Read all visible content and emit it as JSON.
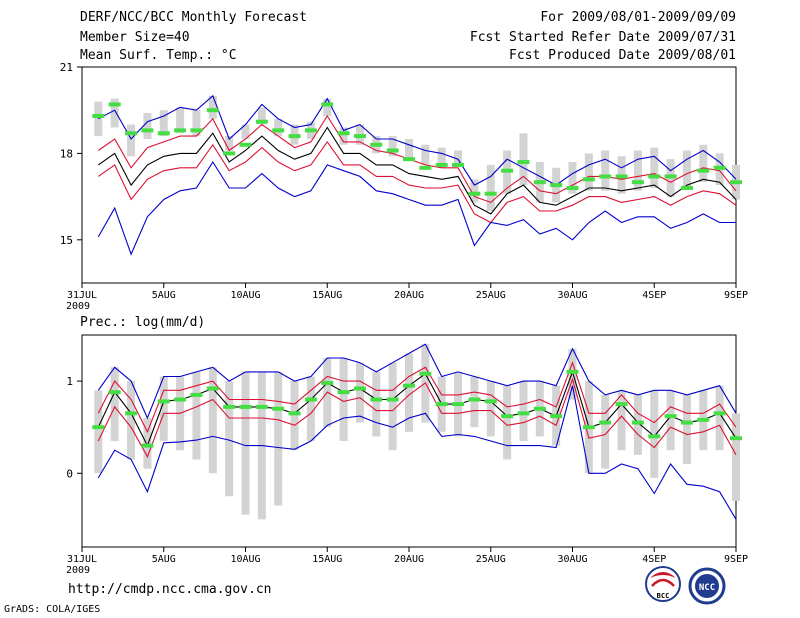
{
  "header": {
    "title": "DERF/NCC/BCC Monthly Forecast",
    "member_size": "Member Size=40",
    "variable": "Mean Surf. Temp.: °C",
    "period": "For 2009/08/01-2009/09/09",
    "fcst_start": "Fcst Started Refer Date 2009/07/31",
    "fcst_produced": "Fcst Produced Date 2009/08/01"
  },
  "footer": {
    "url": "http://cmdp.ncc.cma.gov.cn",
    "grads": "GrADS: COLA/IGES",
    "logo1_text": "BCC",
    "logo2_text": "NCC"
  },
  "colors": {
    "bar": "#d3d3d3",
    "observed": "#44dd44",
    "envelope": "#0000cc",
    "spread": "#dd1133",
    "mean": "#000000"
  },
  "chart_data": [
    {
      "type": "line",
      "title": "Mean Surf. Temp.: °C",
      "ylim": [
        13.5,
        21
      ],
      "yticks": [
        15,
        18,
        21
      ],
      "xlim": [
        0,
        40
      ],
      "xticks": [
        0,
        5,
        10,
        15,
        20,
        25,
        30,
        35,
        40
      ],
      "xticklabels": [
        "31JUL",
        "5AUG",
        "10AUG",
        "15AUG",
        "20AUG",
        "25AUG",
        "30AUG",
        "4SEP",
        "9SEP"
      ],
      "year_label": "2009",
      "x": [
        1,
        2,
        3,
        4,
        5,
        6,
        7,
        8,
        9,
        10,
        11,
        12,
        13,
        14,
        15,
        16,
        17,
        18,
        19,
        20,
        21,
        22,
        23,
        24,
        25,
        26,
        27,
        28,
        29,
        30,
        31,
        32,
        33,
        34,
        35,
        36,
        37,
        38,
        39,
        40
      ],
      "series": [
        {
          "name": "ensemble max",
          "values": [
            19.2,
            19.5,
            18.5,
            19.1,
            19.3,
            19.6,
            19.5,
            20.0,
            18.5,
            19.0,
            19.7,
            19.2,
            18.9,
            19.0,
            19.9,
            18.8,
            19.0,
            18.5,
            18.5,
            18.3,
            18.1,
            18.0,
            17.8,
            16.9,
            17.2,
            17.8,
            17.5,
            17.2,
            16.9,
            17.3,
            17.6,
            17.8,
            17.5,
            17.8,
            17.9,
            17.4,
            17.8,
            18.1,
            17.7,
            17.1
          ]
        },
        {
          "name": "upper spread",
          "values": [
            18.1,
            18.5,
            17.5,
            18.2,
            18.4,
            18.6,
            18.6,
            19.2,
            18.1,
            18.5,
            19.0,
            18.6,
            18.2,
            18.4,
            19.3,
            18.4,
            18.4,
            18.1,
            18.0,
            17.8,
            17.6,
            17.5,
            17.5,
            16.5,
            16.3,
            16.8,
            17.2,
            16.7,
            16.6,
            16.9,
            17.2,
            17.2,
            17.1,
            17.2,
            17.3,
            17.0,
            17.3,
            17.5,
            17.4,
            16.7
          ]
        },
        {
          "name": "ensemble mean",
          "values": [
            17.6,
            18.0,
            16.9,
            17.6,
            17.9,
            18.0,
            18.0,
            18.7,
            17.7,
            18.1,
            18.6,
            18.1,
            17.8,
            18.0,
            18.9,
            18.0,
            18.0,
            17.6,
            17.6,
            17.3,
            17.2,
            17.1,
            17.2,
            16.2,
            15.9,
            16.6,
            16.9,
            16.3,
            16.2,
            16.5,
            16.8,
            16.8,
            16.7,
            16.8,
            16.9,
            16.5,
            16.9,
            17.1,
            17.0,
            16.4
          ]
        },
        {
          "name": "lower spread",
          "values": [
            17.2,
            17.6,
            16.4,
            17.1,
            17.4,
            17.5,
            17.5,
            18.3,
            17.4,
            17.7,
            18.2,
            17.7,
            17.4,
            17.6,
            18.4,
            17.6,
            17.6,
            17.2,
            17.2,
            16.9,
            16.8,
            16.8,
            16.9,
            15.9,
            15.6,
            16.3,
            16.5,
            16.0,
            16.0,
            16.2,
            16.5,
            16.5,
            16.3,
            16.4,
            16.5,
            16.2,
            16.5,
            16.7,
            16.6,
            16.2
          ]
        },
        {
          "name": "ensemble min",
          "values": [
            15.1,
            16.1,
            14.5,
            15.8,
            16.4,
            16.7,
            16.8,
            17.7,
            16.8,
            16.8,
            17.3,
            16.8,
            16.5,
            16.7,
            17.6,
            17.4,
            17.2,
            16.7,
            16.6,
            16.4,
            16.2,
            16.2,
            16.4,
            14.8,
            15.6,
            15.5,
            15.7,
            15.2,
            15.4,
            15.0,
            15.6,
            16.0,
            15.6,
            15.8,
            15.8,
            15.4,
            15.6,
            15.9,
            15.6,
            15.6
          ]
        }
      ],
      "boxes": {
        "low": [
          18.6,
          18.9,
          17.9,
          18.5,
          18.6,
          18.7,
          18.6,
          19.2,
          18.1,
          18.5,
          19.0,
          18.6,
          18.3,
          18.5,
          19.3,
          18.3,
          18.3,
          18.0,
          17.9,
          17.8,
          17.6,
          17.5,
          17.6,
          16.3,
          16.0,
          16.6,
          16.9,
          16.3,
          16.3,
          16.6,
          16.7,
          16.7,
          16.6,
          16.7,
          16.8,
          16.5,
          16.8,
          17.0,
          16.9,
          16.4
        ],
        "high": [
          19.8,
          19.9,
          19.0,
          19.4,
          19.5,
          19.6,
          19.5,
          20.0,
          18.6,
          19.0,
          19.6,
          19.2,
          19.0,
          19.1,
          19.9,
          18.9,
          19.0,
          18.6,
          18.6,
          18.5,
          18.3,
          18.2,
          18.1,
          17.1,
          17.6,
          18.1,
          18.7,
          17.7,
          17.5,
          17.7,
          18.0,
          18.1,
          17.9,
          18.1,
          18.2,
          17.8,
          18.1,
          18.3,
          18.0,
          17.6
        ]
      },
      "observed": [
        19.3,
        19.7,
        18.7,
        18.8,
        18.7,
        18.8,
        18.8,
        19.5,
        18.0,
        18.3,
        19.1,
        18.8,
        18.6,
        18.8,
        19.7,
        18.7,
        18.6,
        18.3,
        18.1,
        17.8,
        17.5,
        17.6,
        17.6,
        16.6,
        16.6,
        17.4,
        17.7,
        17.0,
        16.9,
        16.8,
        17.1,
        17.2,
        17.2,
        17.0,
        17.2,
        17.2,
        16.8,
        17.4,
        17.5,
        17.0
      ]
    },
    {
      "type": "line",
      "title": "Prec.: log(mm/d)",
      "ylim": [
        -0.8,
        1.5
      ],
      "yticks": [
        0,
        1
      ],
      "xlim": [
        0,
        40
      ],
      "xticks": [
        0,
        5,
        10,
        15,
        20,
        25,
        30,
        35,
        40
      ],
      "xticklabels": [
        "31JUL",
        "5AUG",
        "10AUG",
        "15AUG",
        "20AUG",
        "25AUG",
        "30AUG",
        "4SEP",
        "9SEP"
      ],
      "year_label": "2009",
      "x": [
        1,
        2,
        3,
        4,
        5,
        6,
        7,
        8,
        9,
        10,
        11,
        12,
        13,
        14,
        15,
        16,
        17,
        18,
        19,
        20,
        21,
        22,
        23,
        24,
        25,
        26,
        27,
        28,
        29,
        30,
        31,
        32,
        33,
        34,
        35,
        36,
        37,
        38,
        39,
        40
      ],
      "series": [
        {
          "name": "ensemble max",
          "values": [
            0.9,
            1.15,
            1.0,
            0.6,
            1.05,
            1.05,
            1.1,
            1.15,
            1.0,
            1.1,
            1.1,
            1.1,
            1.0,
            1.05,
            1.25,
            1.25,
            1.2,
            1.1,
            1.2,
            1.3,
            1.4,
            1.05,
            1.1,
            1.05,
            1.0,
            0.95,
            1.0,
            1.0,
            0.95,
            1.35,
            1.0,
            0.85,
            0.9,
            0.85,
            0.9,
            0.9,
            0.85,
            0.9,
            0.95,
            0.65
          ]
        },
        {
          "name": "upper spread",
          "values": [
            0.65,
            1.0,
            0.8,
            0.45,
            0.9,
            0.9,
            0.95,
            1.0,
            0.8,
            0.8,
            0.8,
            0.78,
            0.75,
            0.9,
            1.05,
            1.0,
            1.0,
            0.9,
            0.9,
            1.05,
            1.15,
            0.85,
            0.85,
            0.88,
            0.85,
            0.72,
            0.75,
            0.8,
            0.72,
            1.2,
            0.65,
            0.65,
            0.85,
            0.65,
            0.55,
            0.72,
            0.65,
            0.65,
            0.75,
            0.5
          ]
        },
        {
          "name": "ensemble mean",
          "values": [
            0.5,
            0.88,
            0.65,
            0.3,
            0.78,
            0.8,
            0.85,
            0.92,
            0.72,
            0.72,
            0.72,
            0.7,
            0.65,
            0.8,
            0.98,
            0.88,
            0.92,
            0.8,
            0.8,
            0.95,
            1.08,
            0.75,
            0.75,
            0.8,
            0.78,
            0.62,
            0.65,
            0.7,
            0.62,
            1.1,
            0.5,
            0.55,
            0.75,
            0.55,
            0.4,
            0.62,
            0.55,
            0.58,
            0.65,
            0.38
          ]
        },
        {
          "name": "lower spread",
          "values": [
            0.35,
            0.72,
            0.5,
            0.18,
            0.65,
            0.65,
            0.72,
            0.8,
            0.6,
            0.6,
            0.6,
            0.58,
            0.52,
            0.65,
            0.88,
            0.78,
            0.82,
            0.68,
            0.68,
            0.85,
            0.98,
            0.65,
            0.65,
            0.68,
            0.68,
            0.52,
            0.55,
            0.62,
            0.52,
            1.02,
            0.38,
            0.42,
            0.62,
            0.42,
            0.28,
            0.5,
            0.42,
            0.45,
            0.52,
            0.2
          ]
        },
        {
          "name": "ensemble min",
          "values": [
            -0.05,
            0.25,
            0.15,
            -0.2,
            0.33,
            0.34,
            0.36,
            0.4,
            0.36,
            0.3,
            0.3,
            0.28,
            0.26,
            0.35,
            0.52,
            0.6,
            0.62,
            0.55,
            0.5,
            0.6,
            0.65,
            0.4,
            0.42,
            0.4,
            0.35,
            0.3,
            0.3,
            0.3,
            0.28,
            0.95,
            0.0,
            0.0,
            0.1,
            0.05,
            -0.22,
            0.1,
            -0.12,
            -0.14,
            -0.2,
            -0.5
          ]
        }
      ],
      "boxes": {
        "low": [
          0.0,
          0.35,
          0.15,
          0.05,
          0.35,
          0.25,
          0.15,
          0.0,
          -0.25,
          -0.45,
          -0.5,
          -0.35,
          0.25,
          0.35,
          0.5,
          0.35,
          0.55,
          0.4,
          0.25,
          0.45,
          0.55,
          0.45,
          0.4,
          0.5,
          0.4,
          0.15,
          0.35,
          0.4,
          0.3,
          0.8,
          0.0,
          0.05,
          0.25,
          0.2,
          -0.05,
          0.25,
          0.1,
          0.25,
          0.25,
          -0.3
        ]
      },
      "__": null
    }
  ]
}
